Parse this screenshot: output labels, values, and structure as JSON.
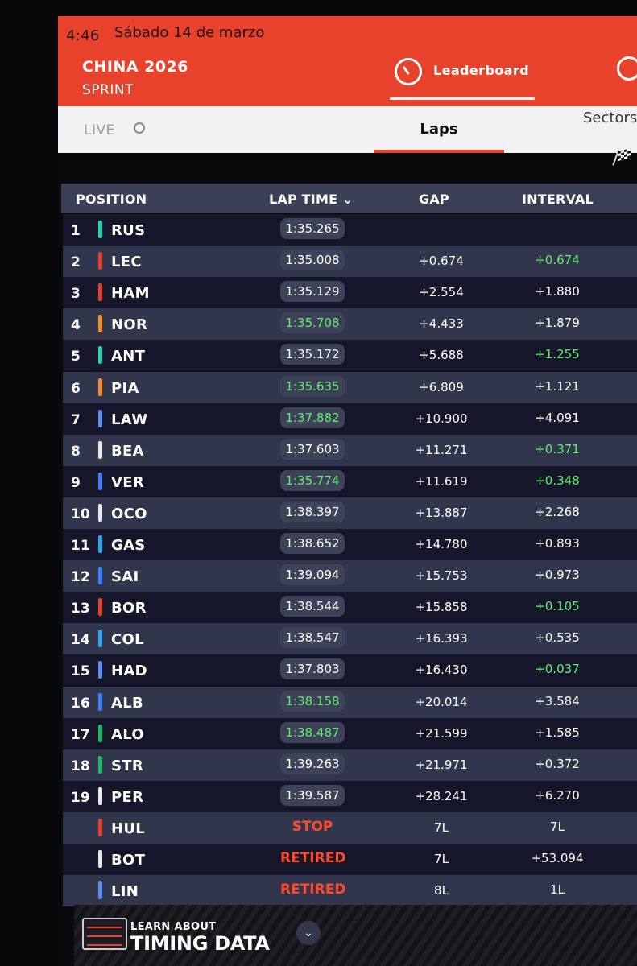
{
  "status": {
    "time": "4:46",
    "date": "Sábado 14 de marzo"
  },
  "event": {
    "title": "CHINA 2026",
    "session": "SPRINT"
  },
  "nav": {
    "leaderboard_label": "Leaderboard"
  },
  "subtabs": {
    "live": "LIVE",
    "laps": "Laps",
    "sectors": "Sectors"
  },
  "table": {
    "headers": {
      "position": "POSITION",
      "lap_time": "LAP TIME",
      "gap": "GAP",
      "interval": "INTERVAL"
    },
    "rows": [
      {
        "pos": "1",
        "code": "RUS",
        "color": "#27d3b0",
        "lap": "1:35.265",
        "lap_pb": false,
        "gap": "",
        "interval": "",
        "int_pb": false
      },
      {
        "pos": "2",
        "code": "LEC",
        "color": "#e8412c",
        "lap": "1:35.008",
        "lap_pb": false,
        "gap": "+0.674",
        "interval": "+0.674",
        "int_pb": true
      },
      {
        "pos": "3",
        "code": "HAM",
        "color": "#e8412c",
        "lap": "1:35.129",
        "lap_pb": false,
        "gap": "+2.554",
        "interval": "+1.880",
        "int_pb": false
      },
      {
        "pos": "4",
        "code": "NOR",
        "color": "#f28b2a",
        "lap": "1:35.708",
        "lap_pb": true,
        "gap": "+4.433",
        "interval": "+1.879",
        "int_pb": false
      },
      {
        "pos": "5",
        "code": "ANT",
        "color": "#27d3b0",
        "lap": "1:35.172",
        "lap_pb": false,
        "gap": "+5.688",
        "interval": "+1.255",
        "int_pb": true
      },
      {
        "pos": "6",
        "code": "PIA",
        "color": "#f28b2a",
        "lap": "1:35.635",
        "lap_pb": true,
        "gap": "+6.809",
        "interval": "+1.121",
        "int_pb": false
      },
      {
        "pos": "7",
        "code": "LAW",
        "color": "#5a8ef0",
        "lap": "1:37.882",
        "lap_pb": true,
        "gap": "+10.900",
        "interval": "+4.091",
        "int_pb": false
      },
      {
        "pos": "8",
        "code": "BEA",
        "color": "#e8e8e8",
        "lap": "1:37.603",
        "lap_pb": false,
        "gap": "+11.271",
        "interval": "+0.371",
        "int_pb": true
      },
      {
        "pos": "9",
        "code": "VER",
        "color": "#3d7fff",
        "lap": "1:35.774",
        "lap_pb": true,
        "gap": "+11.619",
        "interval": "+0.348",
        "int_pb": true
      },
      {
        "pos": "10",
        "code": "OCO",
        "color": "#e8e8e8",
        "lap": "1:38.397",
        "lap_pb": false,
        "gap": "+13.887",
        "interval": "+2.268",
        "int_pb": false
      },
      {
        "pos": "11",
        "code": "GAS",
        "color": "#2fa8f0",
        "lap": "1:38.652",
        "lap_pb": false,
        "gap": "+14.780",
        "interval": "+0.893",
        "int_pb": false
      },
      {
        "pos": "12",
        "code": "SAI",
        "color": "#3d7fff",
        "lap": "1:39.094",
        "lap_pb": false,
        "gap": "+15.753",
        "interval": "+0.973",
        "int_pb": false
      },
      {
        "pos": "13",
        "code": "BOR",
        "color": "#e8412c",
        "lap": "1:38.544",
        "lap_pb": false,
        "gap": "+15.858",
        "interval": "+0.105",
        "int_pb": true
      },
      {
        "pos": "14",
        "code": "COL",
        "color": "#2fa8f0",
        "lap": "1:38.547",
        "lap_pb": false,
        "gap": "+16.393",
        "interval": "+0.535",
        "int_pb": false
      },
      {
        "pos": "15",
        "code": "HAD",
        "color": "#5a8ef0",
        "lap": "1:37.803",
        "lap_pb": false,
        "gap": "+16.430",
        "interval": "+0.037",
        "int_pb": true
      },
      {
        "pos": "16",
        "code": "ALB",
        "color": "#3d7fff",
        "lap": "1:38.158",
        "lap_pb": true,
        "gap": "+20.014",
        "interval": "+3.584",
        "int_pb": false
      },
      {
        "pos": "17",
        "code": "ALO",
        "color": "#1fb86a",
        "lap": "1:38.487",
        "lap_pb": true,
        "gap": "+21.599",
        "interval": "+1.585",
        "int_pb": false
      },
      {
        "pos": "18",
        "code": "STR",
        "color": "#1fb86a",
        "lap": "1:39.263",
        "lap_pb": false,
        "gap": "+21.971",
        "interval": "+0.372",
        "int_pb": false
      },
      {
        "pos": "19",
        "code": "PER",
        "color": "#e8e8e8",
        "lap": "1:39.587",
        "lap_pb": false,
        "gap": "+28.241",
        "interval": "+6.270",
        "int_pb": false
      },
      {
        "pos": "",
        "code": "HUL",
        "color": "#e8412c",
        "lap": "STOP",
        "lap_state": true,
        "gap": "7L",
        "interval": "7L",
        "int_pb": false
      },
      {
        "pos": "",
        "code": "BOT",
        "color": "#e8e8e8",
        "lap": "RETIRED",
        "lap_state": true,
        "gap": "7L",
        "interval": "+53.094",
        "int_pb": false
      },
      {
        "pos": "",
        "code": "LIN",
        "color": "#5a8ef0",
        "lap": "RETIRED",
        "lap_state": true,
        "gap": "8L",
        "interval": "1L",
        "int_pb": false
      }
    ]
  },
  "footer": {
    "learn": "LEARN ABOUT",
    "timing": "TIMING DATA"
  }
}
